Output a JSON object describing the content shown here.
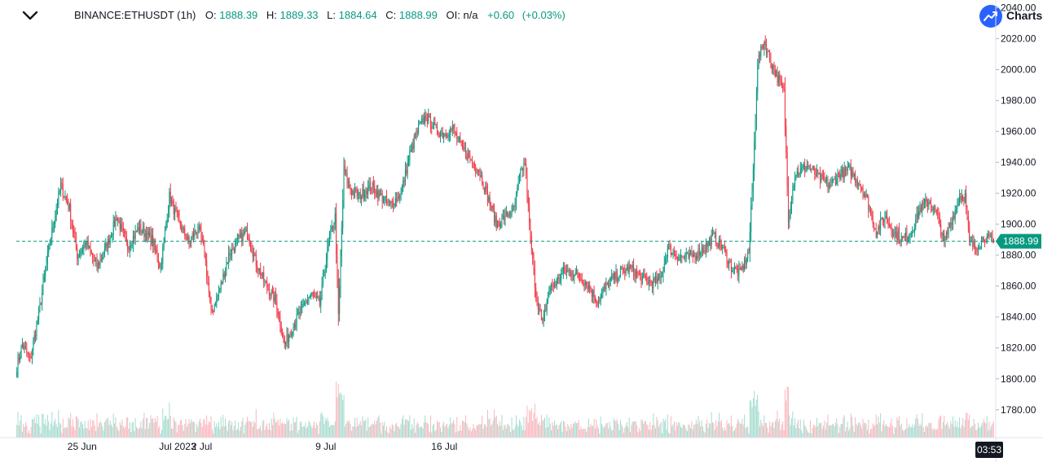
{
  "header": {
    "symbol": "BINANCE:ETHUSDT (1h)",
    "o_label": "O:",
    "o_value": "1888.39",
    "h_label": "H:",
    "h_value": "1889.33",
    "l_label": "L:",
    "l_value": "1884.64",
    "c_label": "C:",
    "c_value": "1888.99",
    "oi_label": "OI:",
    "oi_value": "n/a",
    "change": "+0.60",
    "change_pct": "(+0.03%)"
  },
  "brand": {
    "text": "Charts",
    "icon": "trend-arrow-icon"
  },
  "colors": {
    "up": "#089981",
    "down": "#f23645",
    "up_volume": "#a5dccf",
    "down_volume": "#f9b7bd",
    "price_line": "#089981",
    "brand": "#2962ff"
  },
  "chart_data": {
    "type": "candlestick",
    "interval": "1h",
    "ylim": [
      1762,
      2045
    ],
    "y_ticks": [
      "2040.00",
      "2020.00",
      "2000.00",
      "1980.00",
      "1960.00",
      "1940.00",
      "1920.00",
      "1900.00",
      "1880.00",
      "1860.00",
      "1840.00",
      "1820.00",
      "1800.00",
      "1780.00"
    ],
    "x_ticks": [
      "25 Jun",
      "Jul 2023",
      "2 Jul",
      "9 Jul",
      "16 Jul"
    ],
    "current_price": "1888.99",
    "current_time": "03:53",
    "grid": false,
    "close_path": [
      {
        "t": 0,
        "p": 1808
      },
      {
        "t": 5,
        "p": 1822
      },
      {
        "t": 12,
        "p": 1812
      },
      {
        "t": 20,
        "p": 1842
      },
      {
        "t": 30,
        "p": 1888
      },
      {
        "t": 40,
        "p": 1925
      },
      {
        "t": 48,
        "p": 1910
      },
      {
        "t": 55,
        "p": 1880
      },
      {
        "t": 63,
        "p": 1888
      },
      {
        "t": 73,
        "p": 1872
      },
      {
        "t": 83,
        "p": 1888
      },
      {
        "t": 91,
        "p": 1905
      },
      {
        "t": 101,
        "p": 1885
      },
      {
        "t": 111,
        "p": 1898
      },
      {
        "t": 123,
        "p": 1890
      },
      {
        "t": 131,
        "p": 1872
      },
      {
        "t": 139,
        "p": 1918
      },
      {
        "t": 148,
        "p": 1900
      },
      {
        "t": 157,
        "p": 1888
      },
      {
        "t": 165,
        "p": 1898
      },
      {
        "t": 171,
        "p": 1882
      },
      {
        "t": 177,
        "p": 1842
      },
      {
        "t": 185,
        "p": 1858
      },
      {
        "t": 193,
        "p": 1880
      },
      {
        "t": 202,
        "p": 1890
      },
      {
        "t": 210,
        "p": 1895
      },
      {
        "t": 218,
        "p": 1875
      },
      {
        "t": 226,
        "p": 1862
      },
      {
        "t": 236,
        "p": 1850
      },
      {
        "t": 244,
        "p": 1822
      },
      {
        "t": 252,
        "p": 1835
      },
      {
        "t": 260,
        "p": 1845
      },
      {
        "t": 268,
        "p": 1855
      },
      {
        "t": 276,
        "p": 1848
      },
      {
        "t": 284,
        "p": 1888
      },
      {
        "t": 290,
        "p": 1905
      },
      {
        "t": 293,
        "p": 1840
      },
      {
        "t": 298,
        "p": 1935
      },
      {
        "t": 304,
        "p": 1922
      },
      {
        "t": 312,
        "p": 1918
      },
      {
        "t": 322,
        "p": 1925
      },
      {
        "t": 332,
        "p": 1918
      },
      {
        "t": 340,
        "p": 1912
      },
      {
        "t": 350,
        "p": 1920
      },
      {
        "t": 358,
        "p": 1945
      },
      {
        "t": 366,
        "p": 1962
      },
      {
        "t": 373,
        "p": 1970
      },
      {
        "t": 381,
        "p": 1962
      },
      {
        "t": 389,
        "p": 1958
      },
      {
        "t": 397,
        "p": 1962
      },
      {
        "t": 405,
        "p": 1950
      },
      {
        "t": 413,
        "p": 1942
      },
      {
        "t": 421,
        "p": 1935
      },
      {
        "t": 429,
        "p": 1918
      },
      {
        "t": 437,
        "p": 1900
      },
      {
        "t": 445,
        "p": 1905
      },
      {
        "t": 453,
        "p": 1910
      },
      {
        "t": 459,
        "p": 1932
      },
      {
        "t": 463,
        "p": 1940
      },
      {
        "t": 468,
        "p": 1890
      },
      {
        "t": 473,
        "p": 1855
      },
      {
        "t": 479,
        "p": 1835
      },
      {
        "t": 485,
        "p": 1858
      },
      {
        "t": 491,
        "p": 1862
      },
      {
        "t": 499,
        "p": 1870
      },
      {
        "t": 509,
        "p": 1868
      },
      {
        "t": 519,
        "p": 1862
      },
      {
        "t": 529,
        "p": 1850
      },
      {
        "t": 539,
        "p": 1862
      },
      {
        "t": 549,
        "p": 1868
      },
      {
        "t": 559,
        "p": 1872
      },
      {
        "t": 569,
        "p": 1865
      },
      {
        "t": 579,
        "p": 1862
      },
      {
        "t": 587,
        "p": 1865
      },
      {
        "t": 593,
        "p": 1885
      },
      {
        "t": 601,
        "p": 1880
      },
      {
        "t": 609,
        "p": 1878
      },
      {
        "t": 617,
        "p": 1880
      },
      {
        "t": 627,
        "p": 1885
      },
      {
        "t": 635,
        "p": 1892
      },
      {
        "t": 643,
        "p": 1885
      },
      {
        "t": 651,
        "p": 1872
      },
      {
        "t": 659,
        "p": 1868
      },
      {
        "t": 667,
        "p": 1882
      },
      {
        "t": 671,
        "p": 1935
      },
      {
        "t": 675,
        "p": 2005
      },
      {
        "t": 681,
        "p": 2018
      },
      {
        "t": 687,
        "p": 2005
      },
      {
        "t": 693,
        "p": 1995
      },
      {
        "t": 699,
        "p": 1985
      },
      {
        "t": 703,
        "p": 1905
      },
      {
        "t": 709,
        "p": 1932
      },
      {
        "t": 715,
        "p": 1935
      },
      {
        "t": 721,
        "p": 1938
      },
      {
        "t": 731,
        "p": 1930
      },
      {
        "t": 741,
        "p": 1925
      },
      {
        "t": 749,
        "p": 1932
      },
      {
        "t": 759,
        "p": 1935
      },
      {
        "t": 769,
        "p": 1925
      },
      {
        "t": 775,
        "p": 1915
      },
      {
        "t": 783,
        "p": 1895
      },
      {
        "t": 791,
        "p": 1905
      },
      {
        "t": 799,
        "p": 1895
      },
      {
        "t": 807,
        "p": 1890
      },
      {
        "t": 815,
        "p": 1895
      },
      {
        "t": 823,
        "p": 1910
      },
      {
        "t": 831,
        "p": 1915
      },
      {
        "t": 839,
        "p": 1905
      },
      {
        "t": 845,
        "p": 1888
      },
      {
        "t": 853,
        "p": 1905
      },
      {
        "t": 859,
        "p": 1918
      },
      {
        "t": 864,
        "p": 1918
      },
      {
        "t": 868,
        "p": 1888
      },
      {
        "t": 874,
        "p": 1885
      },
      {
        "t": 882,
        "p": 1892
      },
      {
        "t": 886,
        "p": 1890
      },
      {
        "t": 890,
        "p": 1888
      }
    ]
  }
}
